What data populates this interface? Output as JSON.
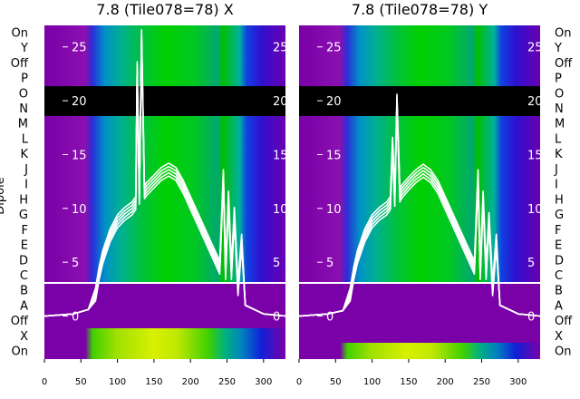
{
  "figure": {
    "ylabel": "Dipole",
    "row_labels": [
      "On",
      "Y",
      "Off",
      "P",
      "O",
      "N",
      "M",
      "L",
      "K",
      "J",
      "I",
      "H",
      "G",
      "F",
      "E",
      "D",
      "C",
      "B",
      "A",
      "Off",
      "X",
      "On"
    ]
  },
  "chart_data": [
    {
      "type": "heatmap",
      "title": "7.8 (Tile078=78) X",
      "x_range": [
        0,
        330
      ],
      "x_ticks": [
        0,
        50,
        100,
        150,
        200,
        250,
        300
      ],
      "overlay_y_range": [
        -4,
        27
      ],
      "overlay_y_ticks": [
        0,
        5,
        10,
        15,
        20,
        25
      ],
      "colors": {
        "background": "#7a00a8",
        "masked_rows": "#000000",
        "overlay_line": "#ffffff",
        "separator": "#ffffff"
      },
      "overlay_series": {
        "x": [
          0,
          40,
          60,
          70,
          75,
          80,
          90,
          100,
          110,
          120,
          125,
          127,
          130,
          133,
          137,
          140,
          150,
          160,
          170,
          180,
          190,
          200,
          210,
          220,
          230,
          240,
          245,
          248,
          252,
          256,
          260,
          265,
          270,
          275,
          300,
          330
        ],
        "y": [
          0,
          0.2,
          0.6,
          2,
          4,
          5.5,
          7.5,
          8.8,
          9.5,
          10,
          10.5,
          23,
          11,
          26,
          11.5,
          11.8,
          12.5,
          13.2,
          13.6,
          13.2,
          12.0,
          10.5,
          9.0,
          7.5,
          6.0,
          4.5,
          13,
          4,
          11,
          4,
          9.5,
          2.5,
          7,
          1,
          0.2,
          0
        ]
      }
    },
    {
      "type": "heatmap",
      "title": "7.8 (Tile078=78) Y",
      "x_range": [
        0,
        330
      ],
      "x_ticks": [
        0,
        50,
        100,
        150,
        200,
        250,
        300
      ],
      "overlay_y_range": [
        -4,
        27
      ],
      "overlay_y_ticks": [
        0,
        5,
        10,
        15,
        20,
        25
      ],
      "colors": {
        "background": "#7a00a8",
        "masked_rows": "#000000",
        "overlay_line": "#ffffff",
        "separator": "#ffffff"
      },
      "overlay_series": {
        "x": [
          0,
          40,
          60,
          70,
          75,
          80,
          90,
          100,
          110,
          120,
          125,
          128,
          131,
          134,
          138,
          140,
          150,
          160,
          170,
          180,
          190,
          200,
          210,
          220,
          230,
          240,
          245,
          248,
          252,
          256,
          260,
          265,
          270,
          275,
          300,
          330
        ],
        "y": [
          0,
          0.2,
          0.5,
          2,
          4,
          5.5,
          7.5,
          8.8,
          9.5,
          10,
          10.5,
          16,
          10.8,
          20,
          11.2,
          11.5,
          12.3,
          13.0,
          13.5,
          13.0,
          12.0,
          10.5,
          9.0,
          7.5,
          6.0,
          4.5,
          13,
          4,
          11,
          4,
          9,
          2.5,
          7,
          1,
          0.2,
          0
        ]
      }
    }
  ]
}
